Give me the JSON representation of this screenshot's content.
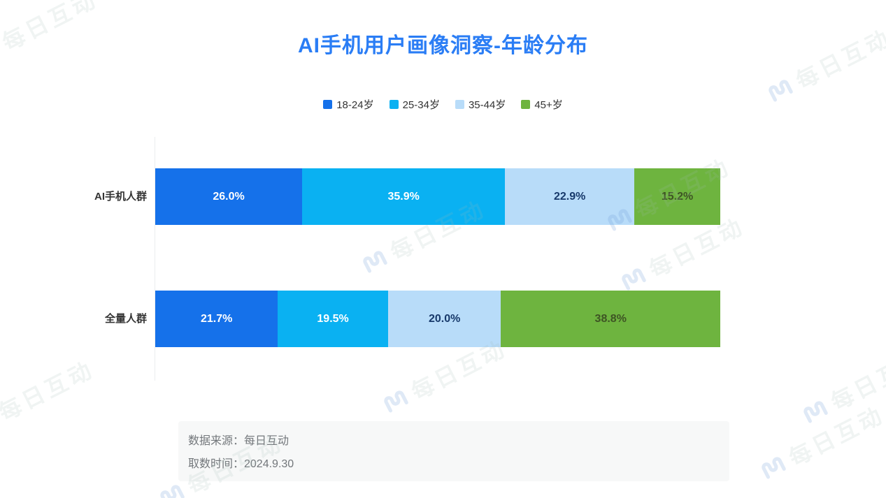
{
  "title": "AI手机用户画像洞察-年龄分布",
  "colors": {
    "title_accent": "#2A7DF5",
    "axis_line": "#EBEDEF",
    "category_label": "#333333",
    "footer_bg": "#F7F8F8",
    "footer_text": "#73777B"
  },
  "chart_data": {
    "type": "bar",
    "variant": "horizontal-stacked-100-percent",
    "title": "AI手机用户画像洞察-年龄分布",
    "categories": [
      "AI手机人群",
      "全量人群"
    ],
    "series": [
      {
        "name": "18-24岁",
        "color": "#1571EA",
        "label_color": "#FFFFFF",
        "values": [
          26.0,
          21.7
        ]
      },
      {
        "name": "25-34岁",
        "color": "#0AB1F2",
        "label_color": "#FFFFFF",
        "values": [
          35.9,
          19.5
        ]
      },
      {
        "name": "35-44岁",
        "color": "#B8DCF9",
        "label_color": "#17396B",
        "values": [
          22.9,
          20.0
        ]
      },
      {
        "name": "45+岁",
        "color": "#6EB43F",
        "label_color": "#3E5424",
        "values": [
          15.2,
          38.8
        ]
      }
    ],
    "value_format": "percent_1dp",
    "xlim": [
      0,
      100
    ],
    "grid": false,
    "legend_position": "top"
  },
  "footer": {
    "source_label": "数据来源：每日互动",
    "date_label": "取数时间：2024.9.30"
  },
  "watermark": {
    "text": "每日互动"
  }
}
